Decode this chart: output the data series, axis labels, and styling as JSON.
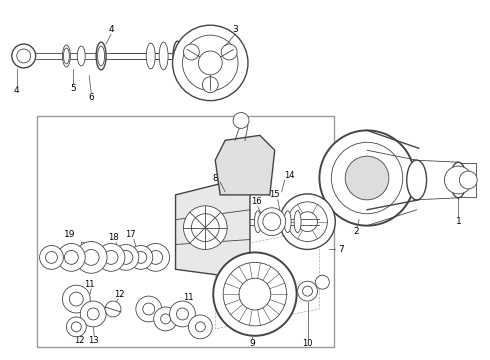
{
  "background_color": "#ffffff",
  "border_color": "#888888",
  "fig_width": 4.9,
  "fig_height": 3.6,
  "dpi": 100,
  "line_color": "#444444",
  "label_fontsize": 6.5
}
